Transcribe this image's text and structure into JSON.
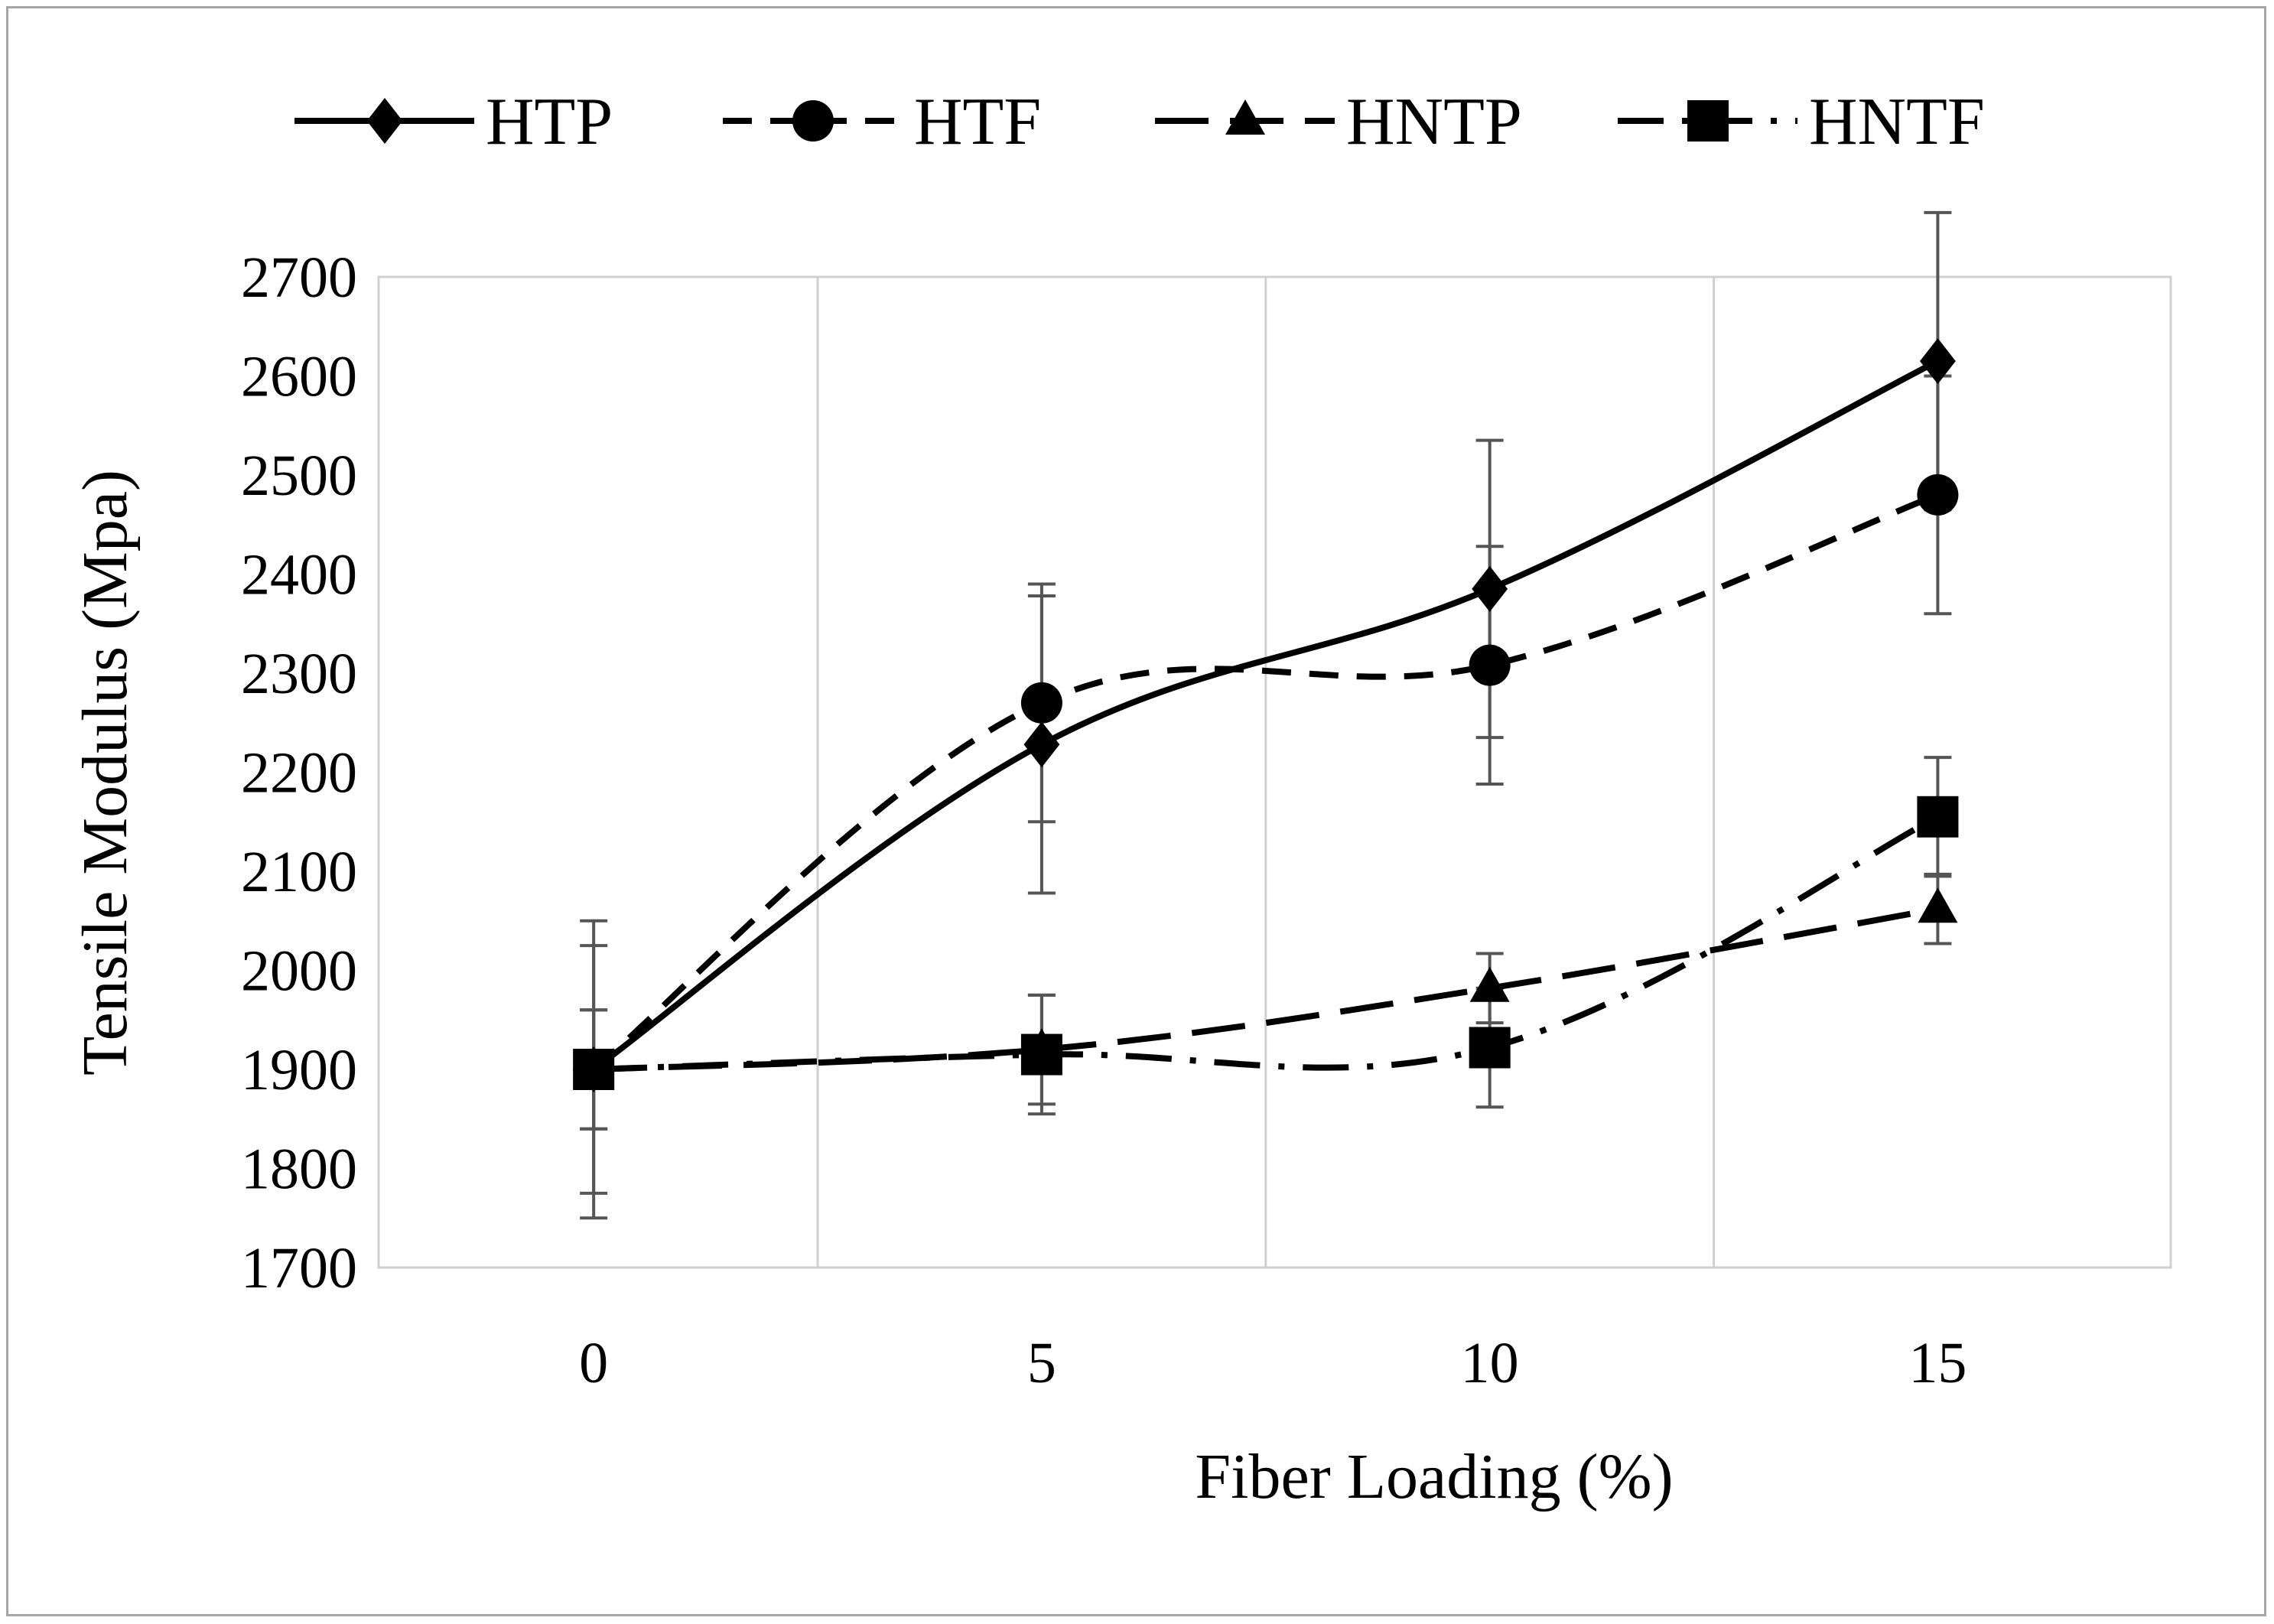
{
  "chart_data": {
    "type": "line",
    "title": "",
    "xlabel": "Fiber Loading  (%)",
    "ylabel": "Tensile Modulus (Mpa)",
    "categories": [
      "0",
      "5",
      "10",
      "15"
    ],
    "x": [
      0,
      5,
      10,
      15
    ],
    "ylim": [
      1700,
      2700
    ],
    "yticks": [
      1700,
      1800,
      1900,
      2000,
      2100,
      2200,
      2300,
      2400,
      2500,
      2600,
      2700
    ],
    "grid": "vertical",
    "legend_position": "top",
    "series": [
      {
        "name": "HTP",
        "marker": "diamond",
        "dash": "solid",
        "values": [
          1900,
          2228,
          2385,
          2615
        ],
        "error": [
          150,
          150,
          150,
          150
        ]
      },
      {
        "name": "HTF",
        "marker": "circle",
        "dash": "dash",
        "values": [
          1900,
          2270,
          2308,
          2480
        ],
        "error": [
          125,
          120,
          120,
          120
        ]
      },
      {
        "name": "HNTP",
        "marker": "triangle",
        "dash": "longdash",
        "values": [
          1900,
          1920,
          1982,
          2062
        ],
        "error": [
          60,
          55,
          35,
          35
        ]
      },
      {
        "name": "HNTF",
        "marker": "square",
        "dash": "dashdot",
        "values": [
          1900,
          1915,
          1922,
          2155
        ],
        "error": [
          60,
          60,
          60,
          60
        ]
      }
    ]
  }
}
